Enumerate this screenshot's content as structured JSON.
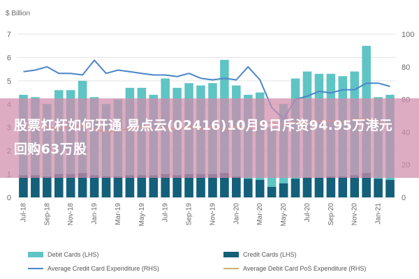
{
  "chart_data": {
    "type": "bar",
    "title": "",
    "y_unit_label": "$ Billion",
    "ylim_left": [
      0,
      7
    ],
    "ylim_right": [
      0,
      100
    ],
    "yticks_left": [
      "0",
      "1",
      "2",
      "3",
      "4",
      "5",
      "6",
      "7"
    ],
    "yticks_right": [
      "0",
      "20",
      "40",
      "60",
      "80",
      "100"
    ],
    "categories": [
      "Jul-18",
      "Aug-18",
      "Sep-18",
      "Oct-18",
      "Nov-18",
      "Dec-18",
      "Jan-19",
      "Feb-19",
      "Mar-19",
      "Apr-19",
      "May-19",
      "Jun-19",
      "Jul-19",
      "Aug-19",
      "Sep-19",
      "Oct-19",
      "Nov-19",
      "Dec-19",
      "Jan-20",
      "Feb-20",
      "Mar-20",
      "Apr-20",
      "May-20",
      "Jun-20",
      "Jul-20",
      "Aug-20",
      "Sep-20",
      "Oct-20",
      "Nov-20",
      "Dec-20",
      "Jan-21",
      "Feb-21"
    ],
    "xtick_labels": [
      "Jul-18",
      "Sep-18",
      "Nov-18",
      "Jan-19",
      "Mar-19",
      "May-19",
      "Jul-19",
      "Sep-19",
      "Nov-19",
      "Jan-20",
      "Mar-20",
      "May-20",
      "Jul-20",
      "Sep-20",
      "Nov-20",
      "Jan-21"
    ],
    "series": [
      {
        "name": "Debit Cards (LHS)",
        "axis": "left",
        "kind": "bar",
        "color": "#5fc4c4",
        "values": [
          4.4,
          4.3,
          4.0,
          4.6,
          4.6,
          5.0,
          4.3,
          4.0,
          4.2,
          4.7,
          4.7,
          4.4,
          5.1,
          4.7,
          4.9,
          4.8,
          4.9,
          5.9,
          4.8,
          4.4,
          4.5,
          3.0,
          4.0,
          5.1,
          5.4,
          5.3,
          5.3,
          5.2,
          5.4,
          6.5,
          4.3,
          4.4
        ]
      },
      {
        "name": "Credit Cards (LHS)",
        "axis": "left",
        "kind": "bar",
        "color": "#14607a",
        "values": [
          0.95,
          0.95,
          0.9,
          1.0,
          1.0,
          1.05,
          0.95,
          0.9,
          0.9,
          0.95,
          0.95,
          0.95,
          1.0,
          0.95,
          1.0,
          1.0,
          1.0,
          1.05,
          0.9,
          0.8,
          0.75,
          0.45,
          0.6,
          0.8,
          0.85,
          0.85,
          0.9,
          0.9,
          0.95,
          1.05,
          0.8,
          0.75
        ]
      },
      {
        "name": "Average Credit Card Expenditure (RHS)",
        "axis": "right",
        "kind": "line",
        "color": "#4a86c8",
        "values": [
          77,
          78,
          80,
          76,
          76,
          75,
          84,
          76,
          78,
          77,
          76,
          75,
          75,
          74,
          76,
          73,
          72,
          73,
          72,
          80,
          72,
          55,
          48,
          60,
          62,
          65,
          64,
          66,
          66,
          70,
          70,
          68
        ]
      },
      {
        "name": "Average Debit Card PoS Expenditure (RHS)",
        "axis": "right",
        "kind": "line",
        "color": "#c8b070",
        "values": [
          43,
          43,
          43,
          42,
          43,
          44,
          42,
          40,
          41,
          42,
          43,
          42,
          42,
          42,
          43,
          42,
          43,
          42,
          43,
          42,
          45,
          46,
          44,
          46,
          46,
          47,
          47,
          46,
          48,
          48,
          47,
          44
        ]
      }
    ],
    "legend_position": "bottom",
    "grid": "horizontal"
  },
  "overlay_title": "股票杠杆如何开通 易点云(02416)10月9日斥资94.95万港元回购63万股",
  "colors": {
    "overlay": "#d08caa",
    "axis_text": "#666666"
  }
}
